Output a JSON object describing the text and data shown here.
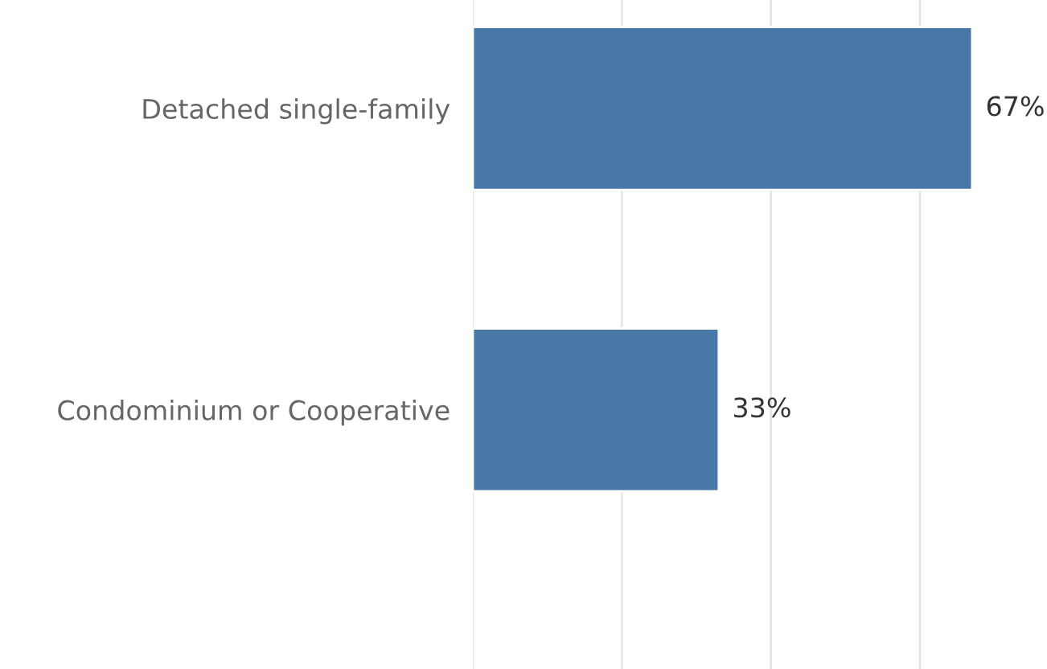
{
  "chart_data": {
    "type": "bar",
    "orientation": "horizontal",
    "categories": [
      "Detached single-family",
      "Condominium or Cooperative"
    ],
    "values": [
      67,
      33
    ],
    "value_labels": [
      "67%",
      "33%"
    ],
    "color": "#4878a8",
    "xticks": [
      {
        "value": 0,
        "label": null
      },
      {
        "value": 20,
        "label": null
      },
      {
        "value": 40,
        "label": null
      },
      {
        "value": 60,
        "label": null
      }
    ],
    "grid": "x",
    "tick_labels": "y"
  }
}
